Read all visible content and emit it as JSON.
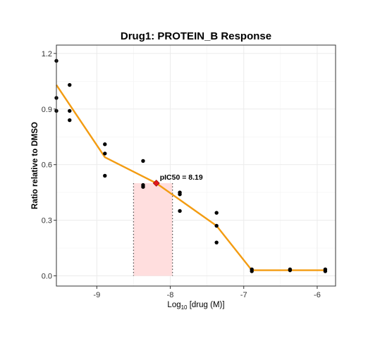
{
  "chart_data": {
    "type": "scatter",
    "title": "Drug1: PROTEIN_B Response",
    "xlabel_main": "Log",
    "xlabel_sub": "10",
    "xlabel_rest": " [drug (M)]",
    "ylabel": "Ratio relative to DMSO",
    "xlim": [
      -9.55,
      -5.75
    ],
    "ylim": [
      -0.055,
      1.245
    ],
    "xticks": [
      -9,
      -8,
      -7,
      -6
    ],
    "xtick_labels": [
      "-9",
      "-8",
      "-7",
      "-6"
    ],
    "yticks": [
      0.0,
      0.3,
      0.6,
      0.9,
      1.2
    ],
    "ytick_labels": [
      "0.0",
      "0.3",
      "0.6",
      "0.9",
      "1.2"
    ],
    "grid": true,
    "points": [
      {
        "x": -9.55,
        "y": 1.16
      },
      {
        "x": -9.55,
        "y": 0.96
      },
      {
        "x": -9.55,
        "y": 0.89
      },
      {
        "x": -9.37,
        "y": 1.03
      },
      {
        "x": -9.37,
        "y": 0.89
      },
      {
        "x": -9.37,
        "y": 0.84
      },
      {
        "x": -8.89,
        "y": 0.71
      },
      {
        "x": -8.89,
        "y": 0.66
      },
      {
        "x": -8.89,
        "y": 0.54
      },
      {
        "x": -8.37,
        "y": 0.62
      },
      {
        "x": -8.37,
        "y": 0.49
      },
      {
        "x": -8.37,
        "y": 0.48
      },
      {
        "x": -7.87,
        "y": 0.45
      },
      {
        "x": -7.87,
        "y": 0.44
      },
      {
        "x": -7.87,
        "y": 0.35
      },
      {
        "x": -7.37,
        "y": 0.34
      },
      {
        "x": -7.37,
        "y": 0.27
      },
      {
        "x": -7.37,
        "y": 0.18
      },
      {
        "x": -6.89,
        "y": 0.035
      },
      {
        "x": -6.89,
        "y": 0.025
      },
      {
        "x": -6.37,
        "y": 0.035
      },
      {
        "x": -6.37,
        "y": 0.03
      },
      {
        "x": -5.89,
        "y": 0.035
      },
      {
        "x": -5.89,
        "y": 0.025
      }
    ],
    "fit_line": {
      "x": [
        -9.55,
        -8.89,
        -8.19,
        -7.37,
        -6.89,
        -6.37,
        -5.89
      ],
      "y": [
        1.03,
        0.64,
        0.5,
        0.27,
        0.03,
        0.03,
        0.03
      ],
      "color": "#f39c12"
    },
    "ic50_point": {
      "x": -8.19,
      "y": 0.5,
      "label": "pIC50 = 8.19",
      "color": "#e31a1c"
    },
    "ci_band": {
      "x0": -8.5,
      "x1": -7.97,
      "y0": 0.0,
      "y1": 0.5,
      "fill": "#ffdede",
      "edge": "#555555"
    },
    "point_color": "#000000"
  }
}
